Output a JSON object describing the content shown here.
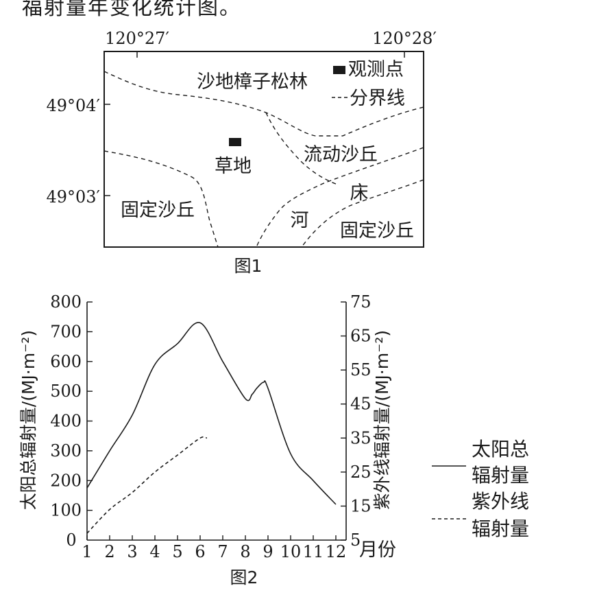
{
  "header_text": "福射量年变化统计图。",
  "figure1": {
    "caption": "图1",
    "lon_labels": [
      "120°27′",
      "120°28′"
    ],
    "lat_labels": [
      "49°04′",
      "49°03′"
    ],
    "region_labels": {
      "forest": "沙地樟子松林",
      "grassland": "草地",
      "mobile_dune": "流动沙丘",
      "riverbed_chuang": "床",
      "riverbed_he": "河",
      "fixed_dune_left": "固定沙丘",
      "fixed_dune_right": "固定沙丘"
    },
    "legend": {
      "observation_point": "观测点",
      "boundary_line": "分界线"
    }
  },
  "figure2": {
    "caption": "图2",
    "left_axis_label": "太阳总辐射量/(MJ·m⁻²)",
    "right_axis_label": "紫外线辐射量/(MJ·m⁻²)",
    "x_unit_label": "月份",
    "legend": {
      "solid_line_1": "太阳总",
      "solid_line_2": "辐射量",
      "dashed_line_1": "紫外线",
      "dashed_line_2": "辐射量"
    }
  },
  "chart_data": {
    "type": "line",
    "x": [
      1,
      2,
      3,
      4,
      5,
      6,
      7,
      8,
      9,
      10,
      11,
      12
    ],
    "xlabel": "月份",
    "y_left": {
      "label": "太阳总辐射量/(MJ·m⁻²)",
      "ylim": [
        0,
        800
      ],
      "ticks": [
        0,
        100,
        200,
        300,
        400,
        500,
        600,
        700,
        800
      ]
    },
    "y_right": {
      "label": "紫外线辐射量/(MJ·m⁻²)",
      "ylim": [
        5,
        75
      ],
      "ticks": [
        5,
        15,
        25,
        35,
        45,
        55,
        65,
        75
      ]
    },
    "series": [
      {
        "name": "太阳总辐射量",
        "axis": "left",
        "style": "solid",
        "x": [
          1,
          2,
          3,
          4,
          5,
          6,
          7,
          8,
          8.3,
          8.5,
          8.8,
          9,
          10,
          11,
          12
        ],
        "values": [
          175,
          300,
          420,
          590,
          660,
          730,
          600,
          475,
          490,
          510,
          530,
          510,
          290,
          200,
          120
        ]
      },
      {
        "name": "紫外线辐射量",
        "axis": "right",
        "style": "dashed",
        "x": [
          1,
          2,
          3,
          4,
          5,
          6,
          6.3
        ],
        "values": [
          7,
          14,
          19,
          25,
          30,
          35,
          35
        ]
      }
    ],
    "grid": false
  }
}
